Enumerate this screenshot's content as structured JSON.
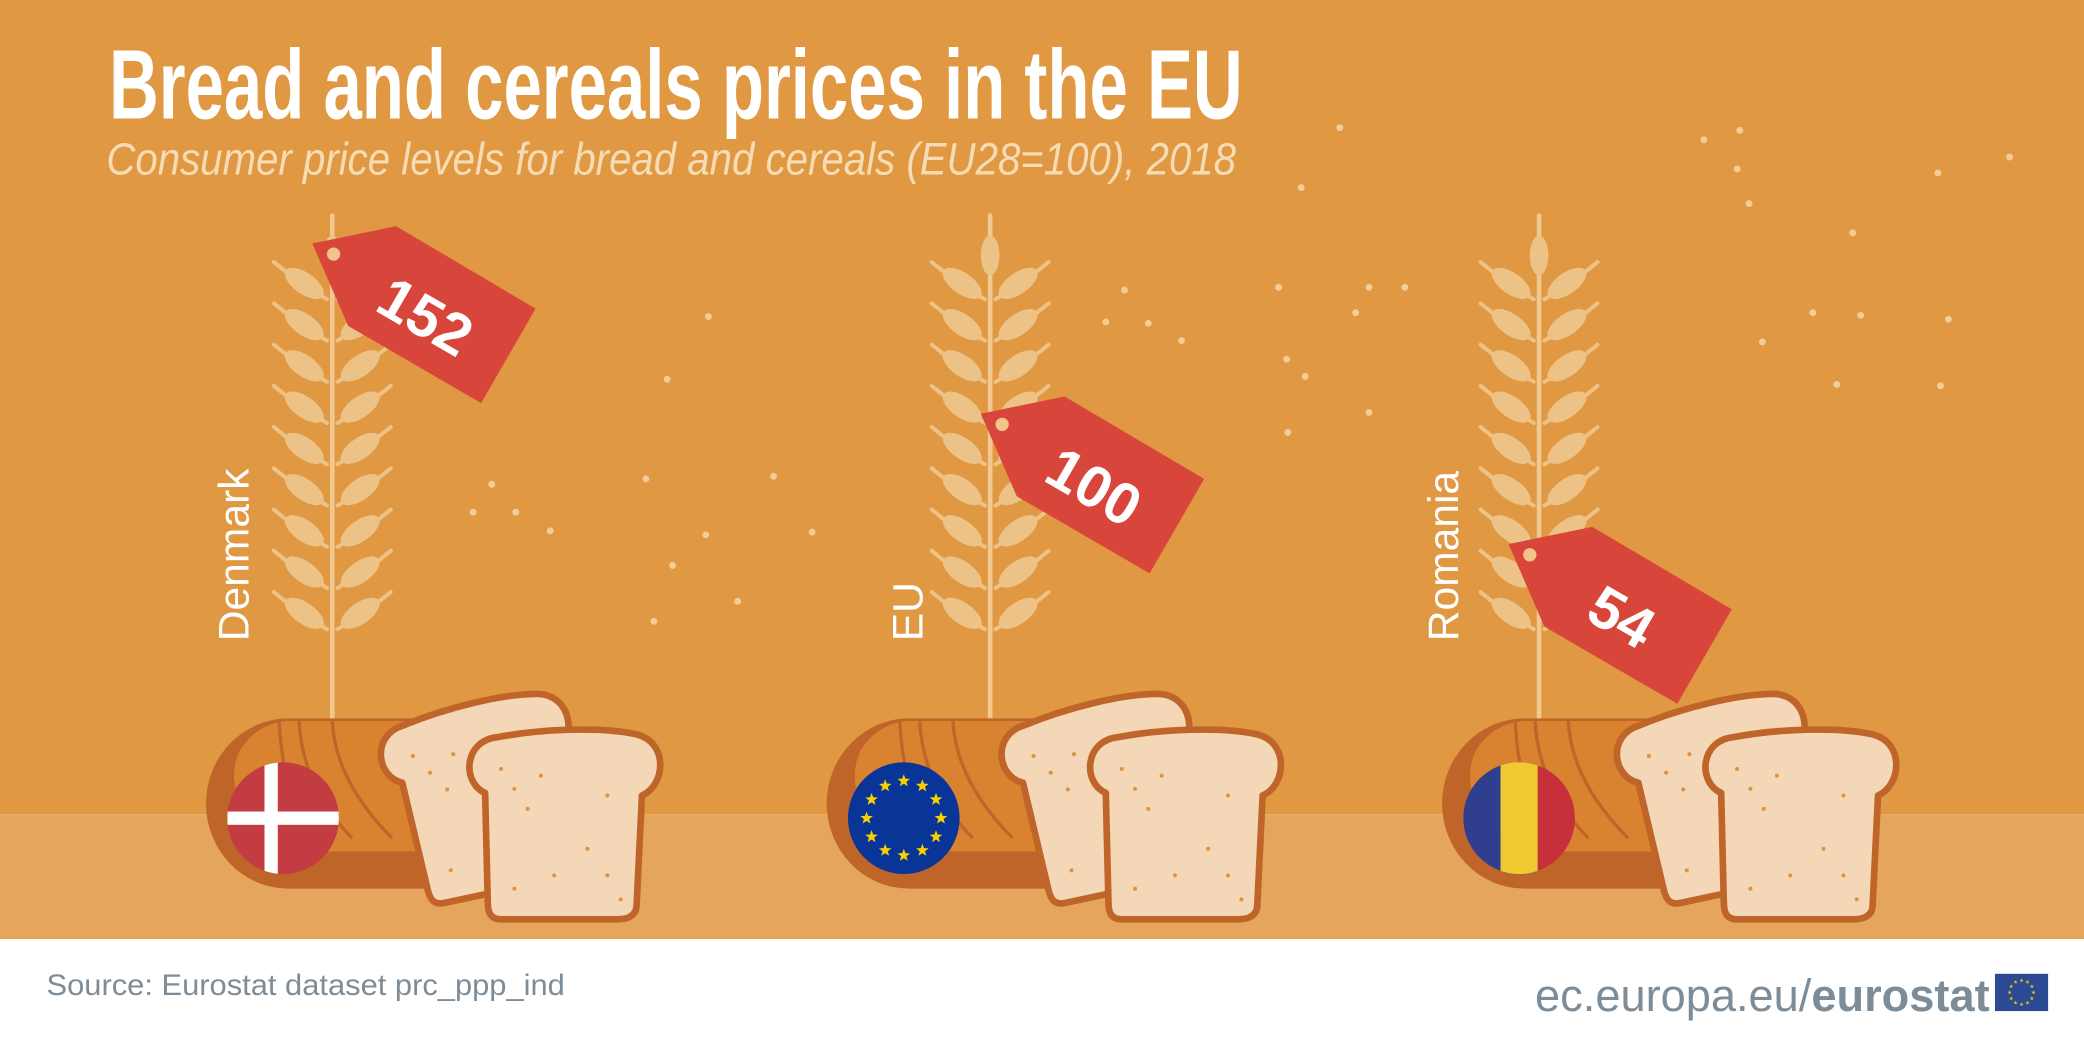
{
  "header": {
    "title": "Bread and cereals prices in the EU",
    "subtitle": "Consumer price levels for bread and cereals (EU28=100), 2018"
  },
  "chart_data": {
    "type": "bar",
    "title": "Bread and cereals prices in the EU",
    "subtitle": "Consumer price levels for bread and cereals (EU28=100), 2018",
    "categories": [
      "Denmark",
      "EU",
      "Romania"
    ],
    "values": [
      152,
      100,
      54
    ],
    "value_labels": [
      "152",
      "100",
      "54"
    ]
  },
  "items": [
    {
      "country": "Denmark",
      "value": "152",
      "flag": "denmark-flag"
    },
    {
      "country": "EU",
      "value": "100",
      "flag": "eu-flag"
    },
    {
      "country": "Romania",
      "value": "54",
      "flag": "romania-flag"
    }
  ],
  "footer": {
    "source": "Source: Eurostat dataset prc_ppp_ind",
    "site_prefix": "ec.europa.eu/",
    "site_brand": "eurostat",
    "logo_icon": "eu-flag-icon"
  },
  "colors": {
    "background": "#e09842",
    "ground": "#e5a55c",
    "tag": "#d8453a",
    "grain": "#edc287",
    "crust": "#c0652a",
    "loaf": "#d9822f",
    "slice": "#f3d7b6"
  }
}
